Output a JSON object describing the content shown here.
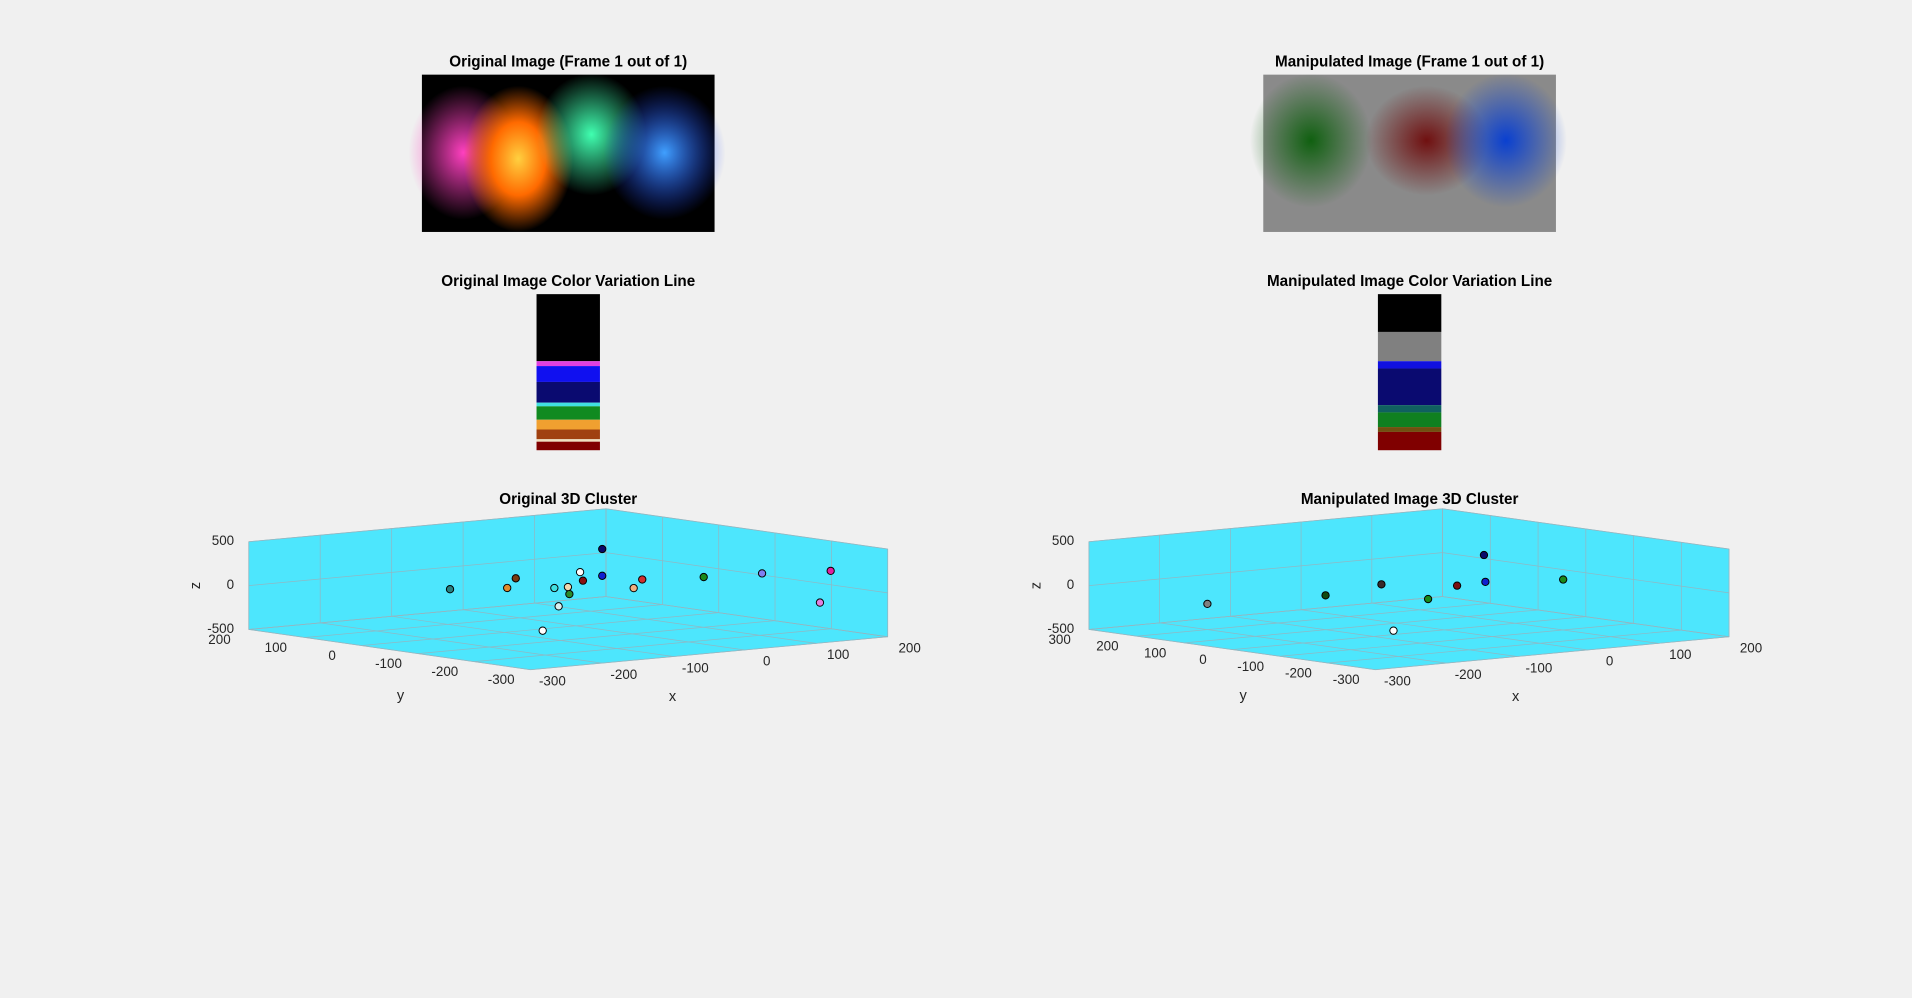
{
  "panels": [
    {
      "image_title": "Original Image (Frame 1 out of 1)",
      "strip_title": "Original Image Color Variation Line"
    },
    {
      "image_title": "Manipulated Image (Frame 1 out of 1)",
      "strip_title": "Manipulated Image Color Variation Line"
    }
  ],
  "chart_data": [
    {
      "type": "scatter3d",
      "title": "Original 3D Cluster",
      "x_label": "x",
      "y_label": "y",
      "z_label": "z",
      "xlim": [
        -300,
        200
      ],
      "ylim": [
        -300,
        200
      ],
      "zlim": [
        -500,
        500
      ],
      "xticks": [
        -300,
        -200,
        -100,
        0,
        100,
        200
      ],
      "yticks": [
        -300,
        -200,
        -100,
        0,
        100,
        200
      ],
      "zticks": [
        -500,
        0,
        500
      ],
      "background": "#4de6fd",
      "grid": true,
      "x": [
        -176,
        -96,
        -84,
        -30,
        -24,
        -9,
        -11,
        6,
        10,
        37,
        37,
        93,
        81,
        179,
        103,
        199,
        184,
        -204
      ],
      "y": [
        0,
        0,
        0,
        0,
        0,
        0,
        0,
        0,
        0,
        0,
        0,
        0,
        0,
        0,
        -200,
        -200,
        -200,
        -200
      ],
      "z": [
        49,
        3,
        104,
        -47,
        -260,
        -132,
        -50,
        107,
        7,
        347,
        42,
        -42,
        -131,
        -79,
        203,
        160,
        -190,
        -219
      ],
      "colors": [
        "#2a7f7f",
        "#e08a2a",
        "#7a3a10",
        "#40e0e0",
        "#d8f0f0",
        "#2a8a2a",
        "#f0d8b0",
        "#ffffff",
        "#8a1010",
        "#0a0a6a",
        "#1020d0",
        "#d03030",
        "#f0b080",
        "#1a8a1a",
        "#8080f0",
        "#e020a0",
        "#e080e0",
        "#ffffff"
      ]
    },
    {
      "type": "scatter3d",
      "title": "Manipulated Image 3D Cluster",
      "x_label": "x",
      "y_label": "y",
      "z_label": "z",
      "xlim": [
        -300,
        200
      ],
      "ylim": [
        -300,
        300
      ],
      "zlim": [
        -500,
        500
      ],
      "xticks": [
        -300,
        -200,
        -100,
        0,
        100,
        200
      ],
      "yticks": [
        -300,
        -200,
        -100,
        0,
        100,
        200,
        300
      ],
      "zticks": [
        -500,
        0,
        500
      ],
      "background": "#4de6fd",
      "grid": true,
      "x": [
        -200,
        -168,
        -89,
        -23,
        18,
        56,
        58,
        168,
        -207
      ],
      "y": [
        200,
        0,
        0,
        0,
        0,
        0,
        0,
        0,
        -200
      ],
      "z": [
        -207,
        19,
        85,
        -132,
        -10,
        310,
        3,
        -53,
        -201
      ],
      "colors": [
        "#808080",
        "#104a10",
        "#3a2a2a",
        "#1a8a1a",
        "#7a1010",
        "#0a0a6a",
        "#1020d0",
        "#1a8a1a",
        "#ffffff"
      ]
    }
  ]
}
